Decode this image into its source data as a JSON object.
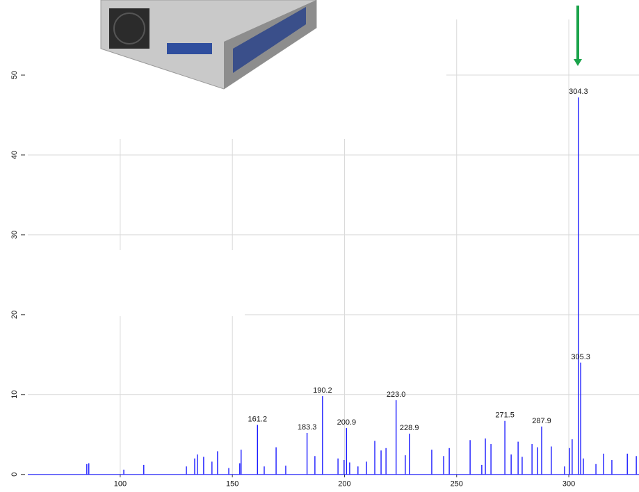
{
  "chart_data": {
    "type": "spectrum",
    "color": "#1a1aff",
    "grid": true,
    "xlim": [
      46.4,
      331.3
    ],
    "ylim": [
      -2.2,
      59.4
    ],
    "xticks": [
      100,
      150,
      200,
      250,
      300
    ],
    "yticks": [
      0,
      10,
      20,
      30,
      40,
      50
    ],
    "x": [
      85.1,
      86.0,
      101.6,
      110.5,
      129.5,
      133.2,
      134.4,
      137.2,
      140.9,
      143.4,
      148.4,
      153.3,
      153.9,
      161.2,
      164.2,
      169.5,
      173.8,
      183.3,
      186.8,
      190.2,
      197.1,
      199.8,
      200.9,
      202.3,
      206.0,
      209.8,
      213.5,
      216.3,
      218.5,
      223.0,
      227.1,
      228.9,
      238.9,
      244.2,
      246.7,
      256.0,
      261.2,
      262.8,
      265.3,
      271.5,
      274.3,
      277.4,
      279.2,
      283.6,
      286.1,
      287.9,
      292.2,
      298.1,
      300.3,
      301.5,
      304.3,
      305.3,
      306.5,
      312.1,
      315.5,
      319.2,
      326.1,
      330.1
    ],
    "values": [
      1.3,
      1.4,
      0.6,
      1.2,
      1.0,
      2.0,
      2.5,
      2.2,
      1.6,
      2.9,
      0.8,
      1.4,
      3.1,
      6.2,
      1.0,
      3.4,
      1.1,
      5.2,
      2.3,
      9.8,
      2.0,
      1.8,
      5.8,
      1.5,
      1.0,
      1.6,
      4.2,
      3.0,
      3.3,
      9.3,
      2.4,
      5.1,
      3.1,
      2.3,
      3.3,
      4.3,
      1.2,
      4.5,
      3.8,
      6.7,
      2.5,
      4.1,
      2.2,
      3.8,
      3.4,
      6.0,
      3.5,
      1.0,
      3.3,
      4.4,
      47.2,
      14.0,
      2.0,
      1.3,
      2.6,
      1.8,
      2.6,
      2.3
    ],
    "peak_labels": [
      null,
      null,
      null,
      null,
      null,
      null,
      null,
      null,
      null,
      null,
      null,
      null,
      null,
      "161.2",
      null,
      null,
      null,
      "183.3",
      null,
      "190.2",
      null,
      null,
      "200.9",
      null,
      null,
      null,
      null,
      null,
      null,
      "223.0",
      null,
      "228.9",
      null,
      null,
      null,
      null,
      null,
      null,
      null,
      "271.5",
      null,
      null,
      null,
      null,
      null,
      "287.9",
      null,
      null,
      null,
      null,
      "304.3",
      "305.3",
      null,
      null,
      null,
      null,
      null,
      null
    ]
  }
}
